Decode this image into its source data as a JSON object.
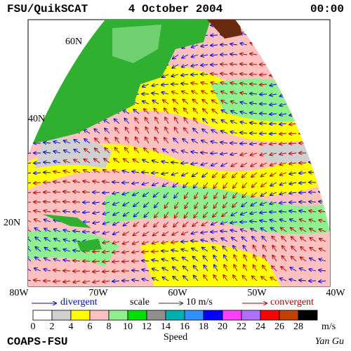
{
  "header": {
    "left": "FSU/QuikSCAT",
    "center": "4 October 2004",
    "right": "00:00"
  },
  "lat_labels": [
    "60N",
    "40N",
    "20N"
  ],
  "lon_labels": [
    "80W",
    "70W",
    "60W",
    "50W",
    "40W"
  ],
  "legend": {
    "divergent": "divergent",
    "scale": "scale",
    "scale_value": "10 m/s",
    "convergent": "convergent",
    "colors": [
      "#ffffff",
      "#d0d0d0",
      "#ffff00",
      "#ffc0c0",
      "#90f090",
      "#00e000",
      "#909090",
      "#00b0b0",
      "#3090ff",
      "#0000ff",
      "#ff40ff",
      "#b070ff",
      "#ff0000",
      "#c04000",
      "#000000"
    ],
    "ticks": [
      "0",
      "2",
      "4",
      "6",
      "8",
      "10",
      "12",
      "14",
      "16",
      "18",
      "20",
      "22",
      "24",
      "26",
      "28"
    ],
    "unit": "m/s",
    "label": "Speed"
  },
  "footer": {
    "left": "COAPS-FSU",
    "right": "Yan Gu"
  }
}
